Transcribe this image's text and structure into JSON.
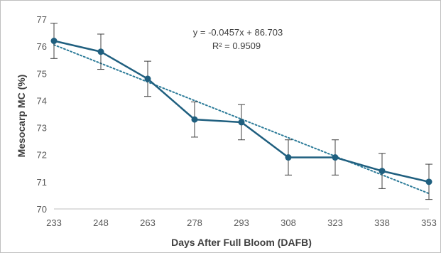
{
  "chart_data": {
    "type": "line",
    "title": "",
    "xlabel": "Days After Full Bloom (DAFB)",
    "ylabel": "Mesocarp MC (%)",
    "x": [
      233,
      248,
      263,
      278,
      293,
      308,
      323,
      338,
      353
    ],
    "xticks": [
      "233",
      "248",
      "263",
      "278",
      "293",
      "308",
      "323",
      "338",
      "353"
    ],
    "ylim": [
      70,
      77
    ],
    "yticks": [
      "70",
      "71",
      "72",
      "73",
      "74",
      "75",
      "76",
      "77"
    ],
    "grid": false,
    "legend": "none",
    "series": [
      {
        "values": [
          76.2,
          75.8,
          74.8,
          73.3,
          73.2,
          71.9,
          71.9,
          71.4,
          71.0
        ],
        "error": [
          0.65,
          0.65,
          0.65,
          0.65,
          0.65,
          0.65,
          0.65,
          0.65,
          0.65
        ],
        "color": "#1f5f7f",
        "marker": "circle"
      }
    ],
    "trendline": {
      "type": "linear",
      "style": "dotted",
      "color": "#2a7a98",
      "slope": -0.0457,
      "intercept": 86.703
    },
    "annotations": {
      "equation": "y = -0.0457x + 86.703",
      "r_squared": "R² = 0.9509"
    }
  }
}
